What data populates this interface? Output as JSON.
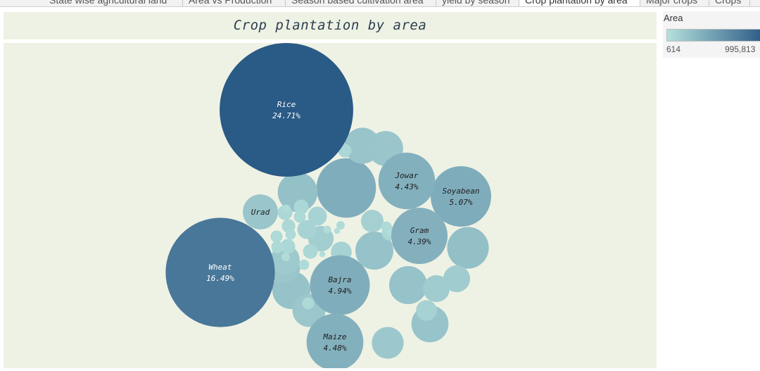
{
  "tabs": [
    {
      "label": "State wise agricultural land",
      "active": false
    },
    {
      "label": "Area vs Production",
      "active": false
    },
    {
      "label": "Season based cultivation area",
      "active": false
    },
    {
      "label": "yield by season",
      "active": false
    },
    {
      "label": "Crop plantation by area",
      "active": true
    },
    {
      "label": "Major crops",
      "active": false
    },
    {
      "label": "Crops",
      "active": false
    }
  ],
  "legend": {
    "title": "Area",
    "min_label": "614",
    "max_label": "995,813",
    "color_low": "#b5e0dc",
    "color_high": "#2a5a86"
  },
  "chart_data": {
    "type": "packed-bubble",
    "title": "Crop plantation by area",
    "color_scale": [
      "#b5e0dc",
      "#2a5a86"
    ],
    "bubbles": [
      {
        "name": "Rice",
        "pct": "24.71%",
        "value": 24.71
      },
      {
        "name": "Wheat",
        "pct": "16.49%",
        "value": 16.49
      },
      {
        "name": "Soyabean",
        "pct": "5.07%",
        "value": 5.07
      },
      {
        "name": "Bajra",
        "pct": "4.94%",
        "value": 4.94
      },
      {
        "name": "Maize",
        "pct": "4.48%",
        "value": 4.48
      },
      {
        "name": "Jowar",
        "pct": "4.43%",
        "value": 4.43
      },
      {
        "name": "Gram",
        "pct": "4.39%",
        "value": 4.39
      },
      {
        "name": "Urad",
        "pct": "",
        "value": 1.7
      }
    ],
    "unlabeled_values": [
      4.9,
      2.4,
      2.2,
      2.0,
      2.0,
      2.0,
      1.9,
      1.8,
      1.7,
      1.6,
      1.5,
      1.4,
      1.2,
      1.0,
      1.0,
      0.9,
      0.7,
      0.6,
      0.6,
      0.5,
      0.5,
      0.3,
      0.3,
      0.3,
      0.3,
      0.3,
      0.25,
      0.25,
      0.2,
      0.2,
      0.2,
      0.2,
      0.15,
      0.15,
      0.15,
      0.1,
      0.1,
      0.1,
      0.08,
      0.08,
      0.05,
      0.05,
      0.05
    ]
  }
}
